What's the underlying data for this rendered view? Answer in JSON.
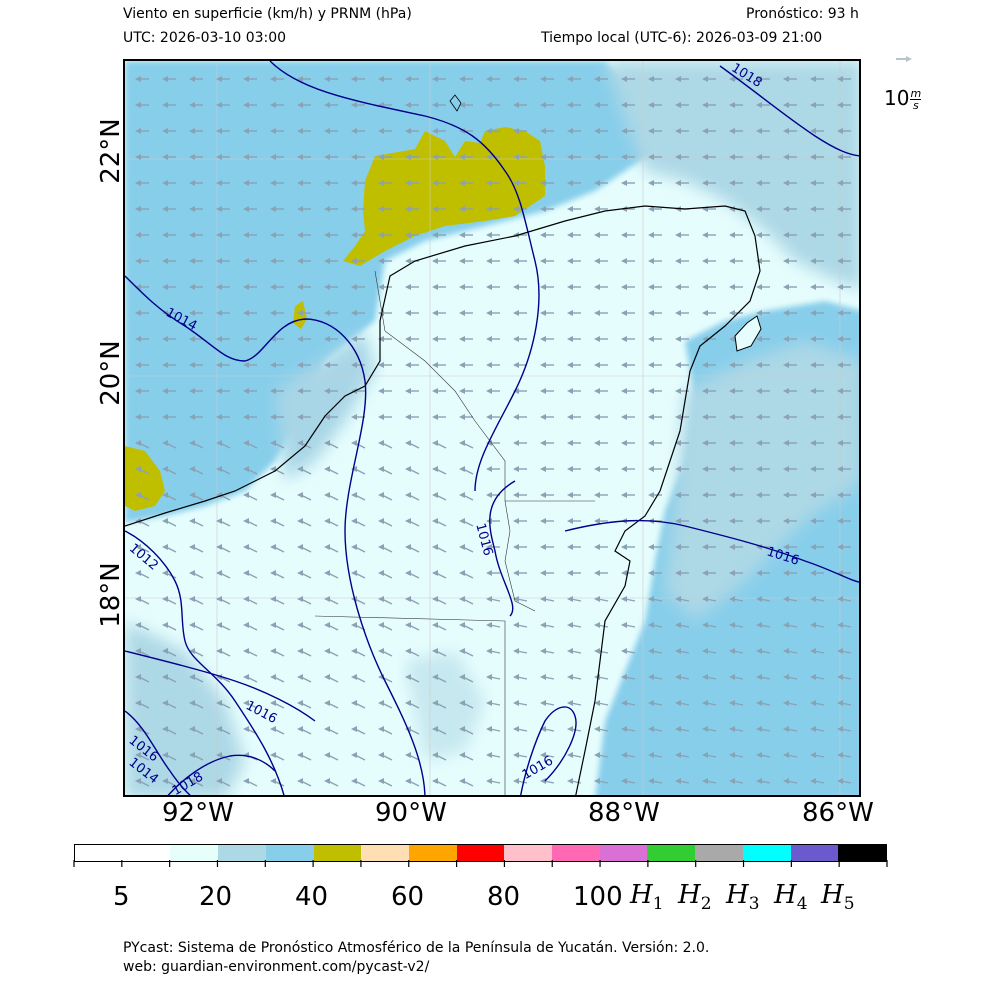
{
  "header": {
    "title": "Viento en superficie (km/h) y PRNM (hPa)",
    "forecast": "Pronóstico: 93 h",
    "utc": "UTC:  2026-03-10 03:00",
    "local": "Tiempo local (UTC-6): 2026-03-09 21:00"
  },
  "wind_reference": {
    "value": "10",
    "unit_num": "m",
    "unit_den": "s"
  },
  "map": {
    "lat_labels": [
      "22°N",
      "20°N",
      "18°N"
    ],
    "lon_labels": [
      "92°W",
      "90°W",
      "88°W",
      "86°W"
    ],
    "isobar_labels": [
      "1018",
      "1014",
      "1016",
      "1016",
      "1012",
      "1016",
      "1016",
      "1014",
      "1018",
      "1016"
    ],
    "colors": {
      "land_calm": "#e6fdfd",
      "wind_20_30": "#add8e6",
      "wind_30_40": "#87ceeb",
      "wind_40_50": "#bfbf00",
      "isobar": "#00008b",
      "coast": "#000000",
      "arrow": "#8aa2b4"
    }
  },
  "colorbar": {
    "segments": [
      "#ffffff",
      "#ffffff",
      "#e6fffa",
      "#add8e6",
      "#87ceeb",
      "#bfbf00",
      "#ffdeb3",
      "#ffa500",
      "#ff0000",
      "#ffc0cb",
      "#ff69b4",
      "#da70d6",
      "#32cd32",
      "#a9a9a9",
      "#00ffff",
      "#6a5acd",
      "#000000"
    ],
    "tick_labels": [
      "5",
      "20",
      "40",
      "60",
      "80",
      "100"
    ],
    "category_labels": [
      {
        "main": "H",
        "sub": "1"
      },
      {
        "main": "H",
        "sub": "2"
      },
      {
        "main": "H",
        "sub": "3"
      },
      {
        "main": "H",
        "sub": "4"
      },
      {
        "main": "H",
        "sub": "5"
      }
    ]
  },
  "footer": {
    "line1": "PYcast: Sistema de Pronóstico Atmosférico de la Península de Yucatán. Versión: 2.0.",
    "line2": "web: guardian-environment.com/pycast-v2/"
  }
}
